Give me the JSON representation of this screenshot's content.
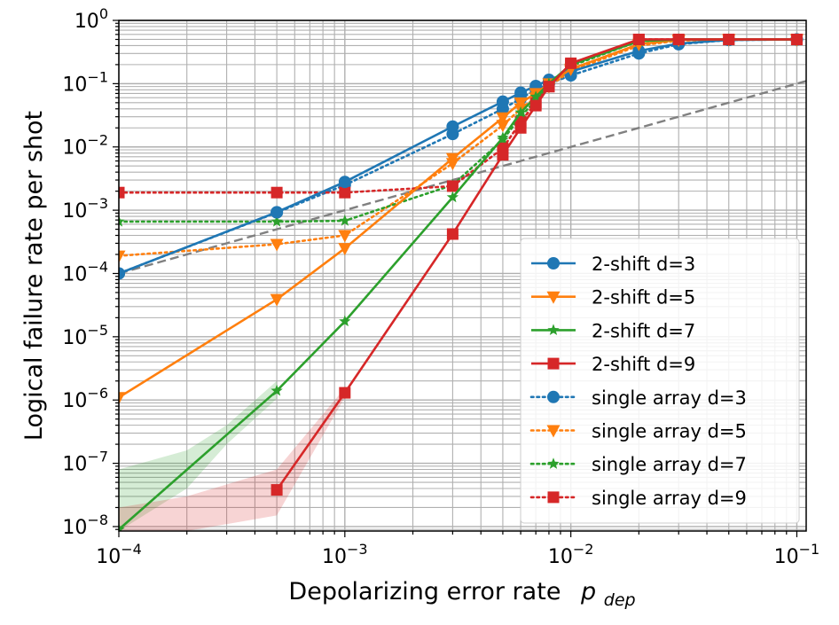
{
  "chart_data": {
    "type": "line",
    "xlabel_text": "Depolarizing error rate",
    "xlabel_symbol": "p",
    "xlabel_subscript": "dep",
    "ylabel": "Logical failure rate per shot",
    "x_scale": "log",
    "y_scale": "log",
    "xlim": [
      0.0001,
      0.11
    ],
    "ylim": [
      8.5e-09,
      1
    ],
    "grid": true,
    "legend_position": "lower-right",
    "x_ticks": [
      {
        "value": 0.0001,
        "base": "10",
        "exp": "−4"
      },
      {
        "value": 0.001,
        "base": "10",
        "exp": "−3"
      },
      {
        "value": 0.01,
        "base": "10",
        "exp": "−2"
      },
      {
        "value": 0.1,
        "base": "10",
        "exp": "−1"
      }
    ],
    "y_ticks": [
      {
        "value": 1,
        "base": "10",
        "exp": "0"
      },
      {
        "value": 0.1,
        "base": "10",
        "exp": "−1"
      },
      {
        "value": 0.01,
        "base": "10",
        "exp": "−2"
      },
      {
        "value": 0.001,
        "base": "10",
        "exp": "−3"
      },
      {
        "value": 0.0001,
        "base": "10",
        "exp": "−4"
      },
      {
        "value": 1e-05,
        "base": "10",
        "exp": "−5"
      },
      {
        "value": 1e-06,
        "base": "10",
        "exp": "−6"
      },
      {
        "value": 1e-07,
        "base": "10",
        "exp": "−7"
      },
      {
        "value": 1e-08,
        "base": "10",
        "exp": "−8"
      }
    ],
    "reference_line": {
      "x": [
        0.0001,
        0.11
      ],
      "y": [
        0.0001,
        0.11
      ],
      "color": "#808080",
      "style": "dashed"
    },
    "series": [
      {
        "name": "2-shift d=3",
        "color": "#1f77b4",
        "marker": "circle",
        "linestyle": "solid",
        "x": [
          0.0001,
          0.0005,
          0.001,
          0.003,
          0.005,
          0.006,
          0.007,
          0.008,
          0.01,
          0.02,
          0.03,
          0.05,
          0.1
        ],
        "y": [
          0.0001,
          0.00093,
          0.0028,
          0.021,
          0.052,
          0.072,
          0.092,
          0.115,
          0.155,
          0.33,
          0.43,
          0.49,
          0.5
        ]
      },
      {
        "name": "2-shift d=5",
        "color": "#ff7f0e",
        "marker": "triangle-down",
        "linestyle": "solid",
        "x": [
          0.0001,
          0.0005,
          0.001,
          0.003,
          0.005,
          0.006,
          0.007,
          0.008,
          0.01,
          0.02,
          0.03,
          0.05,
          0.1
        ],
        "y": [
          1.1e-06,
          3.9e-05,
          0.00025,
          0.0066,
          0.029,
          0.05,
          0.07,
          0.1,
          0.17,
          0.42,
          0.49,
          0.5,
          0.5
        ]
      },
      {
        "name": "2-shift d=7",
        "color": "#2ca02c",
        "marker": "star",
        "linestyle": "solid",
        "x": [
          0.0001,
          0.0005,
          0.001,
          0.003,
          0.005,
          0.006,
          0.007,
          0.008,
          0.01,
          0.02,
          0.03,
          0.05,
          0.1
        ],
        "y": [
          9e-09,
          1.4e-06,
          1.75e-05,
          0.0016,
          0.014,
          0.035,
          0.062,
          0.1,
          0.2,
          0.47,
          0.5,
          0.5,
          0.5
        ],
        "band_x": [
          0.0001,
          0.0002,
          0.0003,
          0.0005
        ],
        "band_low": [
          8.5e-09,
          4e-08,
          2e-07,
          1.05e-06
        ],
        "band_high": [
          8e-08,
          1.6e-07,
          4e-07,
          2e-06
        ]
      },
      {
        "name": "2-shift d=9",
        "color": "#d62728",
        "marker": "square",
        "linestyle": "solid",
        "x": [
          0.0005,
          0.001,
          0.003,
          0.005,
          0.006,
          0.007,
          0.008,
          0.01,
          0.02,
          0.03,
          0.05,
          0.1
        ],
        "y": [
          3.8e-08,
          1.3e-06,
          0.00042,
          0.0075,
          0.02,
          0.045,
          0.09,
          0.21,
          0.5,
          0.5,
          0.5,
          0.5
        ],
        "band_x": [
          0.0001,
          0.0002,
          0.0005,
          0.001
        ],
        "band_low": [
          8.5e-09,
          8.5e-09,
          1.5e-08,
          1.1e-06
        ],
        "band_high": [
          2e-08,
          3e-08,
          8e-08,
          1.55e-06
        ]
      },
      {
        "name": "single array d=3",
        "color": "#1f77b4",
        "marker": "circle",
        "linestyle": "dotted",
        "x": [
          0.0001,
          0.0005,
          0.001,
          0.003,
          0.005,
          0.006,
          0.007,
          0.008,
          0.01,
          0.02,
          0.03,
          0.05,
          0.1
        ],
        "y": [
          0.0001,
          0.00092,
          0.0025,
          0.016,
          0.04,
          0.058,
          0.08,
          0.1,
          0.135,
          0.3,
          0.42,
          0.49,
          0.5
        ]
      },
      {
        "name": "single array d=5",
        "color": "#ff7f0e",
        "marker": "triangle-down",
        "linestyle": "dotted",
        "x": [
          0.0001,
          0.0005,
          0.001,
          0.003,
          0.005,
          0.006,
          0.007,
          0.008,
          0.01,
          0.02,
          0.03,
          0.05,
          0.1
        ],
        "y": [
          0.00019,
          0.00029,
          0.0004,
          0.0055,
          0.022,
          0.04,
          0.06,
          0.09,
          0.16,
          0.4,
          0.48,
          0.5,
          0.5
        ]
      },
      {
        "name": "single array d=7",
        "color": "#2ca02c",
        "marker": "star",
        "linestyle": "dotted",
        "x": [
          0.0001,
          0.0005,
          0.001,
          0.003,
          0.005,
          0.006,
          0.007,
          0.008,
          0.01,
          0.02,
          0.03,
          0.05,
          0.1
        ],
        "y": [
          0.00066,
          0.00066,
          0.00068,
          0.0025,
          0.013,
          0.03,
          0.055,
          0.095,
          0.19,
          0.47,
          0.5,
          0.5,
          0.5
        ]
      },
      {
        "name": "single array d=9",
        "color": "#d62728",
        "marker": "square",
        "linestyle": "dotted",
        "x": [
          0.0001,
          0.0005,
          0.001,
          0.003,
          0.005,
          0.006,
          0.007,
          0.008,
          0.01,
          0.02,
          0.03,
          0.05,
          0.1
        ],
        "y": [
          0.0019,
          0.0019,
          0.0019,
          0.0024,
          0.0095,
          0.025,
          0.05,
          0.09,
          0.2,
          0.5,
          0.5,
          0.5,
          0.5
        ]
      }
    ]
  }
}
